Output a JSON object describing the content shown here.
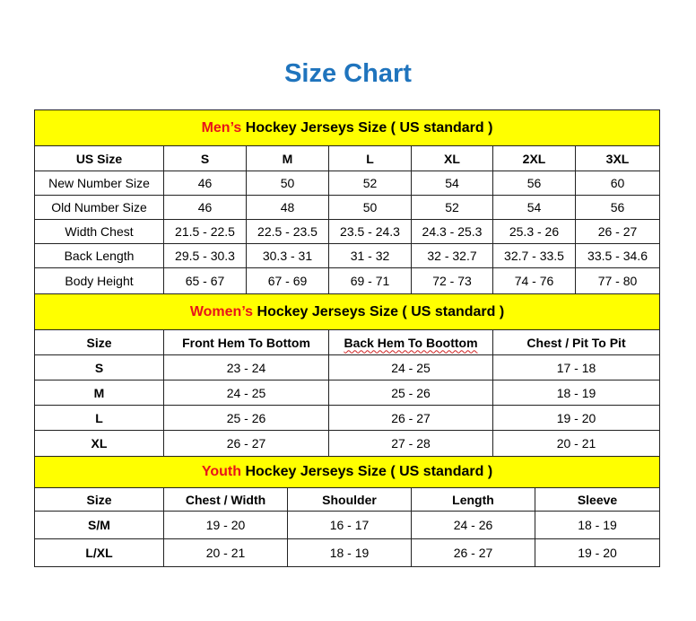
{
  "title": "Size Chart",
  "men": {
    "heading_prefix": "Men’s",
    "heading_rest": " Hockey Jerseys Size ( US standard )",
    "columns": [
      "US Size",
      "S",
      "M",
      "L",
      "XL",
      "2XL",
      "3XL"
    ],
    "rows": [
      [
        "New Number Size",
        "46",
        "50",
        "52",
        "54",
        "56",
        "60"
      ],
      [
        "Old Number Size",
        "46",
        "48",
        "50",
        "52",
        "54",
        "56"
      ],
      [
        "Width Chest",
        "21.5 - 22.5",
        "22.5 - 23.5",
        "23.5 - 24.3",
        "24.3 - 25.3",
        "25.3 - 26",
        "26 - 27"
      ],
      [
        "Back Length",
        "29.5 - 30.3",
        "30.3 - 31",
        "31 - 32",
        "32 - 32.7",
        "32.7 - 33.5",
        "33.5 - 34.6"
      ],
      [
        "Body Height",
        "65 - 67",
        "67 - 69",
        "69 - 71",
        "72 - 73",
        "74 - 76",
        "77 - 80"
      ]
    ]
  },
  "women": {
    "heading_prefix": "Women’s",
    "heading_rest": " Hockey Jerseys Size ( US standard )",
    "columns": [
      "Size",
      "Front Hem To Bottom",
      "Back Hem To Boottom",
      "Chest / Pit To Pit"
    ],
    "rows": [
      [
        "S",
        "23 - 24",
        "24 - 25",
        "17 - 18"
      ],
      [
        "M",
        "24 - 25",
        "25 - 26",
        "18 - 19"
      ],
      [
        "L",
        "25 - 26",
        "26 - 27",
        "19 - 20"
      ],
      [
        "XL",
        "26 - 27",
        "27 - 28",
        "20 - 21"
      ]
    ]
  },
  "youth": {
    "heading_prefix": "Youth",
    "heading_rest": " Hockey Jerseys Size ( US standard )",
    "columns": [
      "Size",
      "Chest / Width",
      "Shoulder",
      "Length",
      "Sleeve"
    ],
    "rows": [
      [
        "S/M",
        "19 - 20",
        "16 - 17",
        "24 - 26",
        "18 - 19"
      ],
      [
        "L/XL",
        "20 - 21",
        "18 - 19",
        "26 - 27",
        "19 - 20"
      ]
    ]
  },
  "colors": {
    "title": "#1f74bd",
    "heading_bg": "#ffff00",
    "heading_accent": "#e8141a"
  }
}
